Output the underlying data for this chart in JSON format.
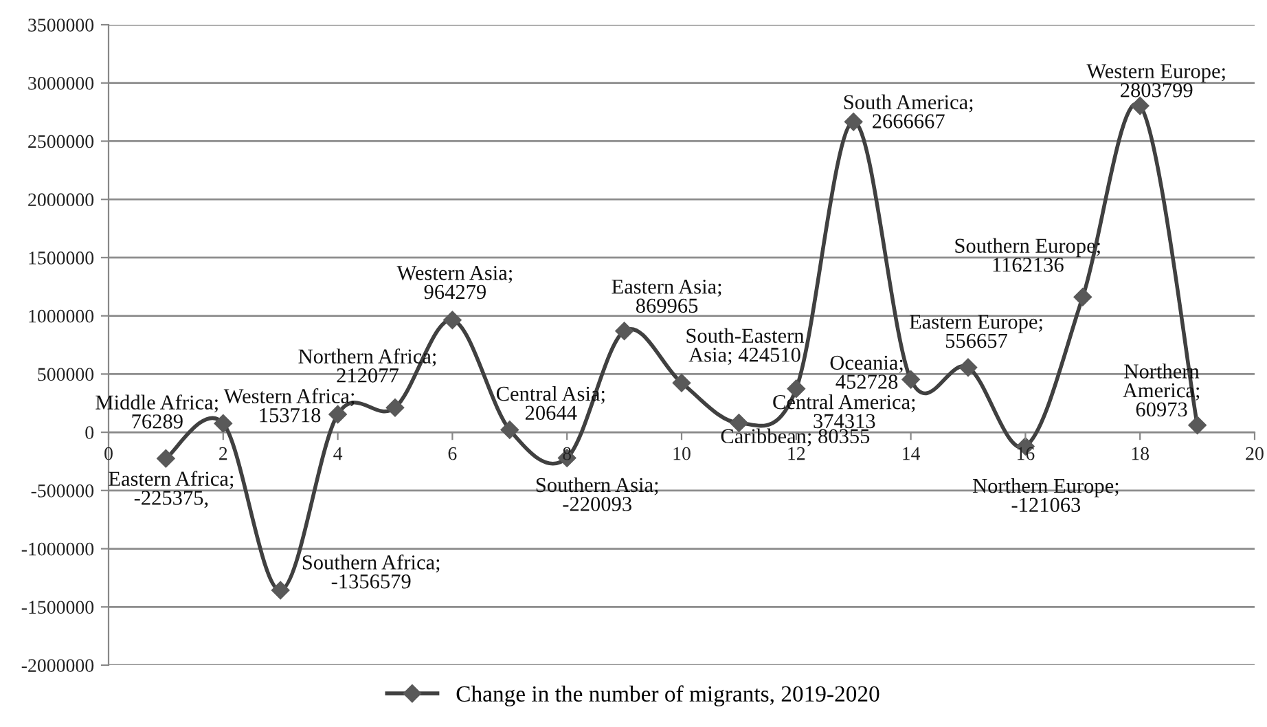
{
  "chart_data": {
    "type": "line",
    "x": [
      1,
      2,
      3,
      4,
      5,
      6,
      7,
      8,
      9,
      10,
      11,
      12,
      13,
      14,
      15,
      16,
      17,
      18,
      19
    ],
    "series": [
      {
        "name": "Change in the number of migrants, 2019-2020",
        "color": "#404040",
        "values": [
          -225375,
          76289,
          -1356579,
          153718,
          212077,
          964279,
          20644,
          -220093,
          869965,
          424510,
          80355,
          374313,
          2666667,
          452728,
          556657,
          -121063,
          1162136,
          2803799,
          60973
        ]
      }
    ],
    "xlim": [
      0,
      20
    ],
    "xticks": [
      0,
      2,
      4,
      6,
      8,
      10,
      12,
      14,
      16,
      18,
      20
    ],
    "ylim": [
      -2000000,
      3500000
    ],
    "yticks": [
      -2000000,
      -1500000,
      -1000000,
      -500000,
      0,
      500000,
      1000000,
      1500000,
      2000000,
      2500000,
      3000000,
      3500000
    ],
    "grid": "y",
    "legend": "bottom",
    "marker": "diamond",
    "line_style": "solid",
    "annotations": [
      {
        "text": "Eastern Africa;\n-225375,",
        "x": 1,
        "y": -225375
      },
      {
        "text": "Middle Africa;\n76289",
        "x": 2,
        "y": 76289
      },
      {
        "text": "Southern Africa;\n-1356579",
        "x": 3,
        "y": -1356579
      },
      {
        "text": "Western Africa;\n153718",
        "x": 4,
        "y": 153718
      },
      {
        "text": "Northern Africa;\n212077",
        "x": 5,
        "y": 212077
      },
      {
        "text": "Western Asia;\n964279",
        "x": 6,
        "y": 964279
      },
      {
        "text": "Central Asia;\n20644",
        "x": 7,
        "y": 20644
      },
      {
        "text": "Southern Asia;\n-220093",
        "x": 8,
        "y": -220093
      },
      {
        "text": "Eastern Asia;\n869965",
        "x": 9,
        "y": 869965
      },
      {
        "text": "South-Eastern\nAsia; 424510",
        "x": 10,
        "y": 424510
      },
      {
        "text": "Caribbean; 80355",
        "x": 11,
        "y": 80355
      },
      {
        "text": "Central America;\n374313",
        "x": 12,
        "y": 374313
      },
      {
        "text": "South America;\n2666667",
        "x": 13,
        "y": 2666667
      },
      {
        "text": "Oceania;\n452728",
        "x": 14,
        "y": 452728
      },
      {
        "text": "Eastern Europe;\n556657",
        "x": 15,
        "y": 556657
      },
      {
        "text": "Northern Europe;\n-121063",
        "x": 16,
        "y": -121063
      },
      {
        "text": "Southern Europe;\n1162136",
        "x": 17,
        "y": 1162136
      },
      {
        "text": "Western Europe;\n2803799",
        "x": 18,
        "y": 2803799
      },
      {
        "text": "Northern\nAmerica;\n60973",
        "x": 19,
        "y": 60973
      }
    ]
  }
}
